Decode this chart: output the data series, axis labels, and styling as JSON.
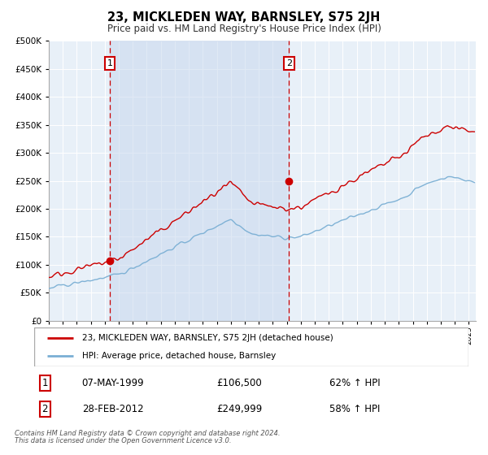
{
  "title": "23, MICKLEDEN WAY, BARNSLEY, S75 2JH",
  "subtitle": "Price paid vs. HM Land Registry's House Price Index (HPI)",
  "legend_line1": "23, MICKLEDEN WAY, BARNSLEY, S75 2JH (detached house)",
  "legend_line2": "HPI: Average price, detached house, Barnsley",
  "transaction1_date": "07-MAY-1999",
  "transaction1_price": "£106,500",
  "transaction1_hpi": "62% ↑ HPI",
  "transaction1_year": 1999.35,
  "transaction1_value": 106500,
  "transaction2_date": "28-FEB-2012",
  "transaction2_price": "£249,999",
  "transaction2_hpi": "58% ↑ HPI",
  "transaction2_year": 2012.16,
  "transaction2_value": 249999,
  "red_line_color": "#cc0000",
  "blue_line_color": "#7aafd4",
  "plot_bg_color": "#e8f0f8",
  "shading_color": "#c8d8ee",
  "vline_color": "#cc0000",
  "background_color": "#ffffff",
  "grid_color": "#ffffff",
  "footnote_line1": "Contains HM Land Registry data © Crown copyright and database right 2024.",
  "footnote_line2": "This data is licensed under the Open Government Licence v3.0.",
  "ylim": [
    0,
    500000
  ],
  "xlim_start": 1995.0,
  "xlim_end": 2025.5
}
